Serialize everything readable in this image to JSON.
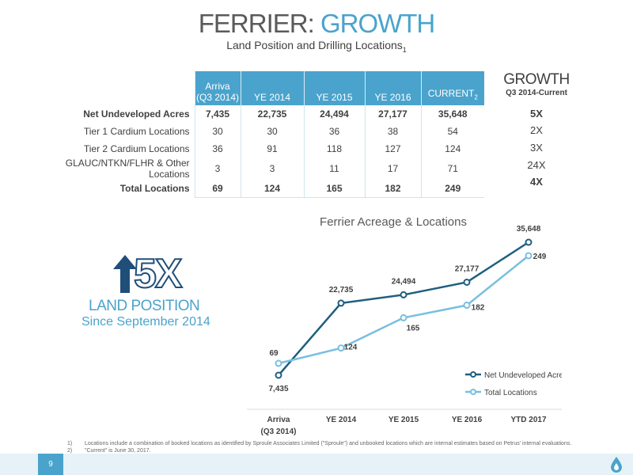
{
  "title": {
    "part1": "FERRIER: ",
    "part2": "GROWTH"
  },
  "subtitle": {
    "text": "Land Position and Drilling Locations",
    "sub": "1"
  },
  "table": {
    "headers": [
      {
        "line1": "Arriva",
        "line2": "(Q3 2014)"
      },
      {
        "line1": "",
        "line2": "YE 2014"
      },
      {
        "line1": "",
        "line2": "YE 2015"
      },
      {
        "line1": "",
        "line2": "YE 2016"
      },
      {
        "line1": "",
        "line2": "CURRENT",
        "sub": "2"
      }
    ],
    "rows": [
      {
        "label": "Net Undeveloped Acres",
        "values": [
          "7,435",
          "22,735",
          "24,494",
          "27,177",
          "35,648"
        ],
        "bold": true,
        "growth": "5X"
      },
      {
        "label": "Tier 1 Cardium Locations",
        "values": [
          "30",
          "30",
          "36",
          "38",
          "54"
        ],
        "bold": false,
        "growth": "2X"
      },
      {
        "label": "Tier 2 Cardium  Locations",
        "values": [
          "36",
          "91",
          "118",
          "127",
          "124"
        ],
        "bold": false,
        "growth": "3X"
      },
      {
        "label": "GLAUC/NTKN/FLHR & Other Locations",
        "values": [
          "3",
          "3",
          "11",
          "17",
          "71"
        ],
        "bold": false,
        "growth": "24X"
      },
      {
        "label": "Total Locations",
        "values": [
          "69",
          "124",
          "165",
          "182",
          "249"
        ],
        "bold": true,
        "growth": "4X"
      }
    ],
    "growth_header": {
      "title": "GROWTH",
      "subtitle": "Q3 2014-Current"
    }
  },
  "callout": {
    "big": "5X",
    "line1": "LAND POSITION",
    "line2": "Since September 2014"
  },
  "chart_data": {
    "type": "line",
    "title": "Ferrier Acreage & Locations",
    "categories": [
      "Arriva (Q3 2014)",
      "YE 2014",
      "YE 2015",
      "YE 2016",
      "YTD 2017"
    ],
    "category_lines": [
      [
        "Arriva",
        "(Q3 2014)"
      ],
      [
        "YE 2014"
      ],
      [
        "YE 2015"
      ],
      [
        "YE 2016"
      ],
      [
        "YTD 2017"
      ]
    ],
    "series": [
      {
        "name": "Net Undeveloped Acres",
        "values": [
          7435,
          22735,
          24494,
          27177,
          35648
        ],
        "labels": [
          "7,435",
          "22,735",
          "24,494",
          "27,177",
          "35,648"
        ],
        "color": "#1f5f7f"
      },
      {
        "name": "Total Locations",
        "values": [
          69,
          124,
          165,
          182,
          249
        ],
        "labels": [
          "69",
          "124",
          "165",
          "182",
          "249"
        ],
        "color": "#79bfe0"
      }
    ],
    "legend_position": "right",
    "grid": false
  },
  "footnotes": [
    {
      "num": "1)",
      "text": "Locations include a combination of booked locations as identified by Sproule Associates Limited (\"Sproule\") and unbooked locations which are internal estimates based on Petrus' internal evaluations."
    },
    {
      "num": "2)",
      "text": "\"Current\" is June 30, 2017."
    }
  ],
  "page_number": "9",
  "colors": {
    "accent": "#4aa3cc",
    "dark": "#1f5f7f",
    "navy": "#1f4e79"
  }
}
